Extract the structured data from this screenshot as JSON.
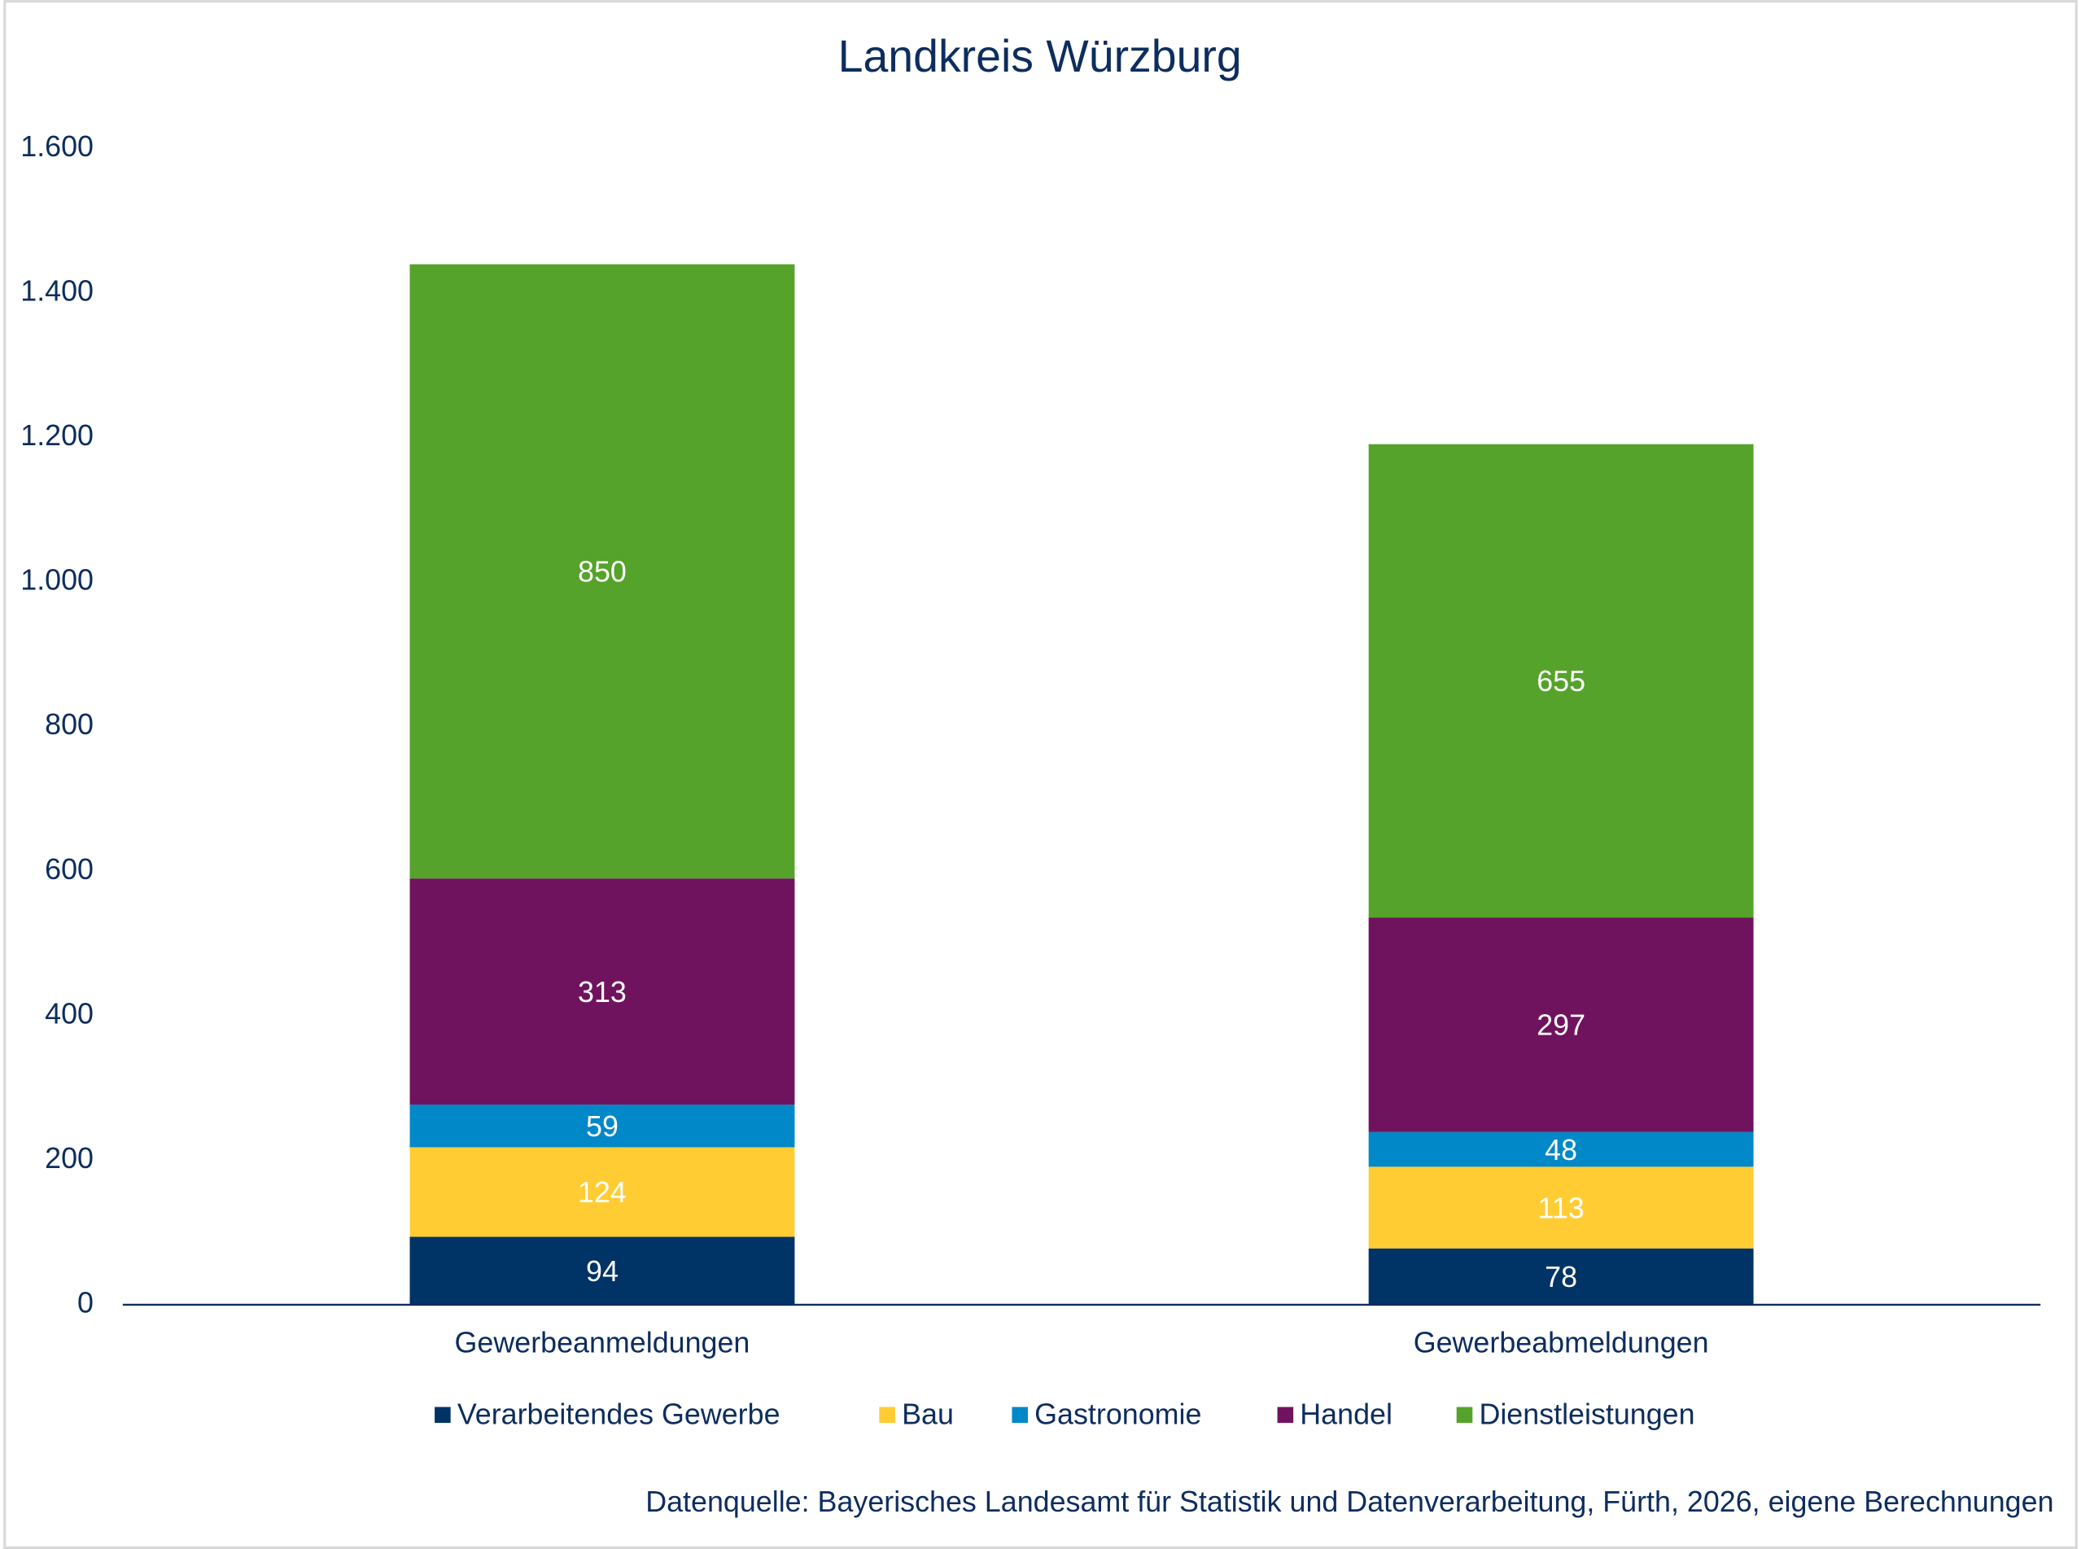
{
  "chart_data": {
    "type": "stacked_bar",
    "title": "Landkreis Würzburg",
    "categories": [
      "Gewerbeanmeldungen",
      "Gewerbeabmeldungen"
    ],
    "series": [
      {
        "name": "Verarbeitendes Gewerbe",
        "color": "#003366",
        "values": [
          94,
          78
        ]
      },
      {
        "name": "Bau",
        "color": "#ffcc33",
        "values": [
          124,
          113
        ]
      },
      {
        "name": "Gastronomie",
        "color": "#0088c8",
        "values": [
          59,
          48
        ]
      },
      {
        "name": "Handel",
        "color": "#70135e",
        "values": [
          313,
          297
        ]
      },
      {
        "name": "Dienstleistungen",
        "color": "#55a32a",
        "values": [
          850,
          655
        ]
      }
    ],
    "ylim": [
      0,
      1600
    ],
    "yticks": [
      0,
      200,
      400,
      600,
      800,
      {
        "value": 1000,
        "label": "1.000"
      },
      {
        "value": 1200,
        "label": "1.200"
      },
      {
        "value": 1400,
        "label": "1.400"
      },
      {
        "value": 1600,
        "label": "1.600"
      }
    ],
    "legend": "bottom",
    "source": "Datenquelle: Bayerisches Landesamt für Statistik und Datenverarbeitung, Fürth, 2026, eigene Berechnungen"
  }
}
